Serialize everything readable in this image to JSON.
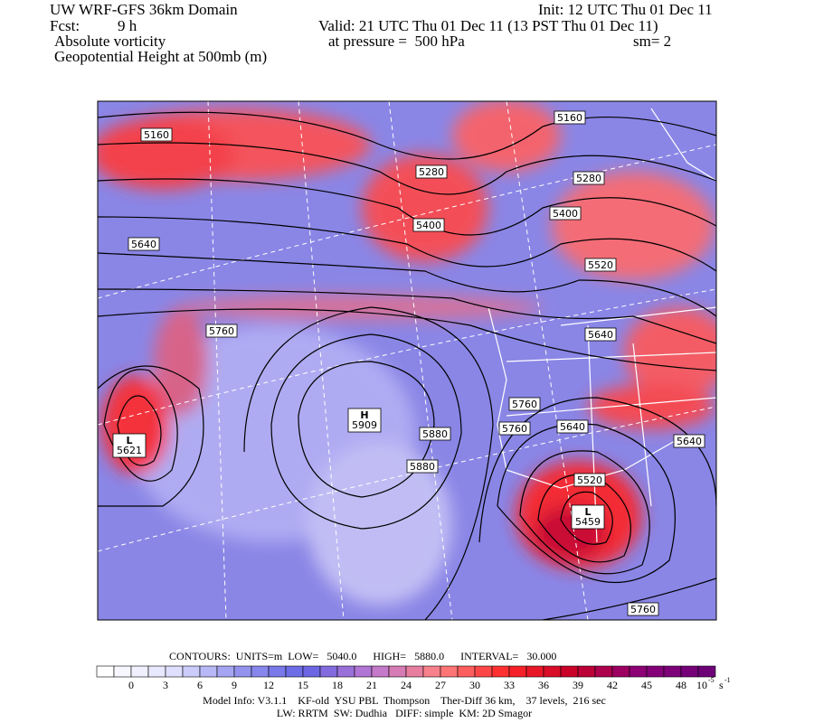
{
  "header": {
    "title": "UW WRF-GFS 36km Domain",
    "init": "Init: 12 UTC Thu 01 Dec 11",
    "fcst_label": "Fcst:",
    "fcst_value": "9 h",
    "valid": "Valid: 21 UTC Thu 01 Dec 11 (13 PST Thu 01 Dec 11)",
    "field": "Absolute vorticity",
    "pressure": "at pressure =  500 hPa",
    "smoothing": "sm= 2",
    "contour_field": "Geopotential Height at 500mb (m)"
  },
  "map": {
    "contour_labels": [
      "5160",
      "5160",
      "5280",
      "5280",
      "5400",
      "5400",
      "5640",
      "5520",
      "5760",
      "5640",
      "5760",
      "5760",
      "5640",
      "5640",
      "5880",
      "5880",
      "5520",
      "5760"
    ],
    "centers": [
      {
        "symbol": "H",
        "value": "5909"
      },
      {
        "symbol": "L",
        "value": "5621"
      },
      {
        "symbol": "L",
        "value": "5459"
      }
    ]
  },
  "footer": {
    "contours": "CONTOURS:  UNITS=m  LOW=   5040.0      HIGH=   5880.0      INTERVAL=   30.000",
    "colorbar_labels": [
      0,
      3,
      6,
      9,
      12,
      15,
      18,
      21,
      24,
      27,
      30,
      33,
      36,
      39,
      42,
      45,
      48
    ],
    "colorbar_unit": {
      "base": "10",
      "exponent": "-5",
      "unit": "s",
      "unit_exponent": "-1"
    },
    "model_info_1": "Model Info: V3.1.1    KF-old  YSU PBL  Thompson    Ther-Diff 36 km,    37 levels,  216 sec",
    "model_info_2": "LW: RRTM  SW: Dudhia   DIFF: simple  KM: 2D Smagor"
  }
}
